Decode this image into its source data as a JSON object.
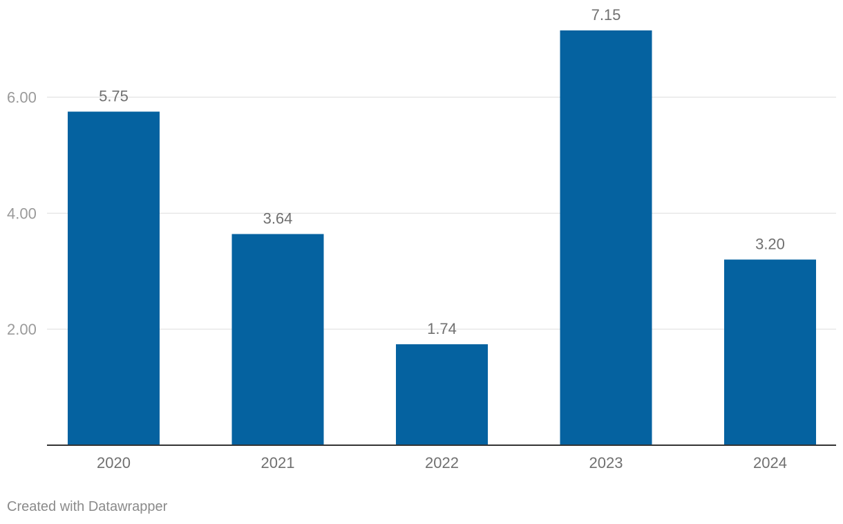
{
  "chart_data": {
    "type": "bar",
    "categories": [
      "2020",
      "2021",
      "2022",
      "2023",
      "2024"
    ],
    "values": [
      5.75,
      3.64,
      1.74,
      7.15,
      3.2
    ],
    "value_labels": [
      "5.75",
      "3.64",
      "1.74",
      "7.15",
      "3.20"
    ],
    "title": "",
    "xlabel": "",
    "ylabel": "",
    "ylim": [
      0,
      7.15
    ],
    "yticks": [
      2,
      4,
      6
    ],
    "ytick_labels": [
      "2.00",
      "4.00",
      "6.00"
    ],
    "grid": true,
    "bar_color": "#0562a0"
  },
  "footer": {
    "credit": "Created with Datawrapper"
  }
}
